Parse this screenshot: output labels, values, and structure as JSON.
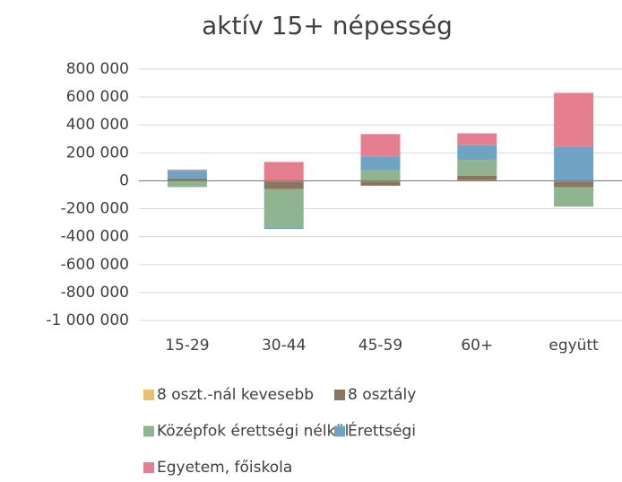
{
  "chart_data": {
    "type": "stacked-bar",
    "title": "aktív 15+ népesség",
    "categories": [
      "15-29",
      "30-44",
      "45-59",
      "60+",
      "együtt"
    ],
    "series": [
      {
        "name": "8 oszt.-nál kevesebb",
        "color": "#e8c170",
        "values": [
          2000,
          -5000,
          -5000,
          5000,
          -5000
        ]
      },
      {
        "name": "8 osztály",
        "color": "#8b7560",
        "values": [
          15000,
          -55000,
          -30000,
          30000,
          -40000
        ]
      },
      {
        "name": "Középfok érettségi nélkül",
        "color": "#8fb48f",
        "values": [
          -45000,
          -275000,
          75000,
          115000,
          -140000
        ]
      },
      {
        "name": "Érettségi",
        "color": "#6fa3c4",
        "values": [
          55000,
          -10000,
          100000,
          105000,
          245000
        ]
      },
      {
        "name": "Egyetem, főiskola",
        "color": "#e57f90",
        "values": [
          8000,
          135000,
          160000,
          85000,
          385000
        ]
      }
    ],
    "ylim": [
      -1000000,
      800000
    ],
    "yticks": [
      {
        "value": -1000000,
        "label": "-1 000 000"
      },
      {
        "value": -800000,
        "label": "-800 000"
      },
      {
        "value": -600000,
        "label": "-600 000"
      },
      {
        "value": -400000,
        "label": "-400 000"
      },
      {
        "value": -200000,
        "label": "-200 000"
      },
      0,
      {
        "value": 200000,
        "label": "200 000"
      },
      {
        "value": 400000,
        "label": "400 000"
      },
      {
        "value": 600000,
        "label": "600 000"
      },
      {
        "value": 800000,
        "label": "800 000"
      }
    ],
    "grid": true,
    "legend": "bottom"
  }
}
